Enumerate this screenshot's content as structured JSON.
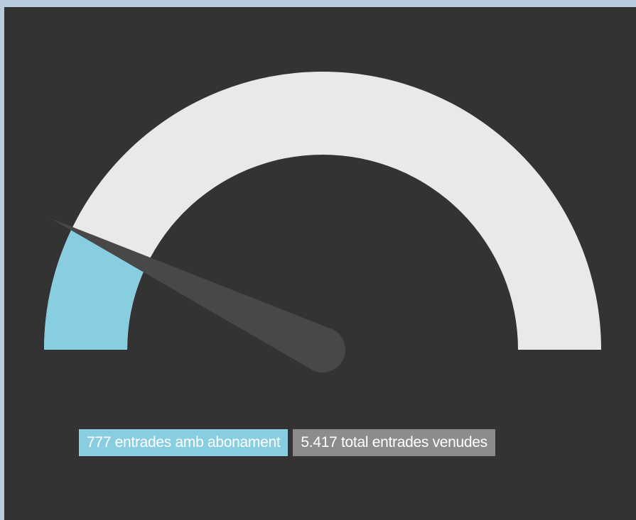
{
  "chart_data": {
    "type": "gauge",
    "value": 777,
    "max": 5417,
    "labels": {
      "value_label": "777 entrades amb abonament",
      "total_label": "5.417 total entrades venudes"
    },
    "colors": {
      "fill": "#88cde0",
      "track": "#e9e9e9",
      "needle": "#484848",
      "background": "#333333",
      "total_chip": "#8c8c8c"
    }
  }
}
